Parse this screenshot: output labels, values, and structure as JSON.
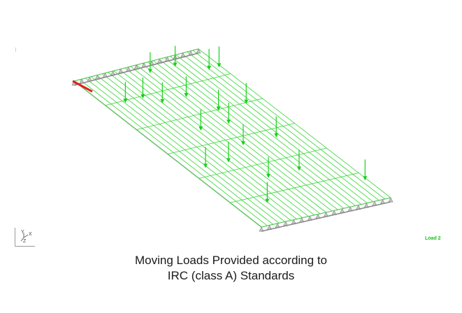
{
  "view": {
    "load_case_label": "Load 2",
    "caption_line1": "Moving Loads Provided according to",
    "caption_line2": "IRC (class A) Standards",
    "axis_labels": {
      "y": "Y",
      "z": "Z",
      "x": "X"
    }
  },
  "colors": {
    "mesh_line": "#33d633",
    "load_arrow": "#18d018",
    "deck_edge": "#b5b5b5",
    "support": "#8a8a8a",
    "highlight_member": "#e02020",
    "caption_text": "#1a1a1a"
  },
  "model": {
    "longitudinal_members": 22,
    "transverse_members": 6,
    "supports_per_end": 17,
    "load_count": 20
  }
}
